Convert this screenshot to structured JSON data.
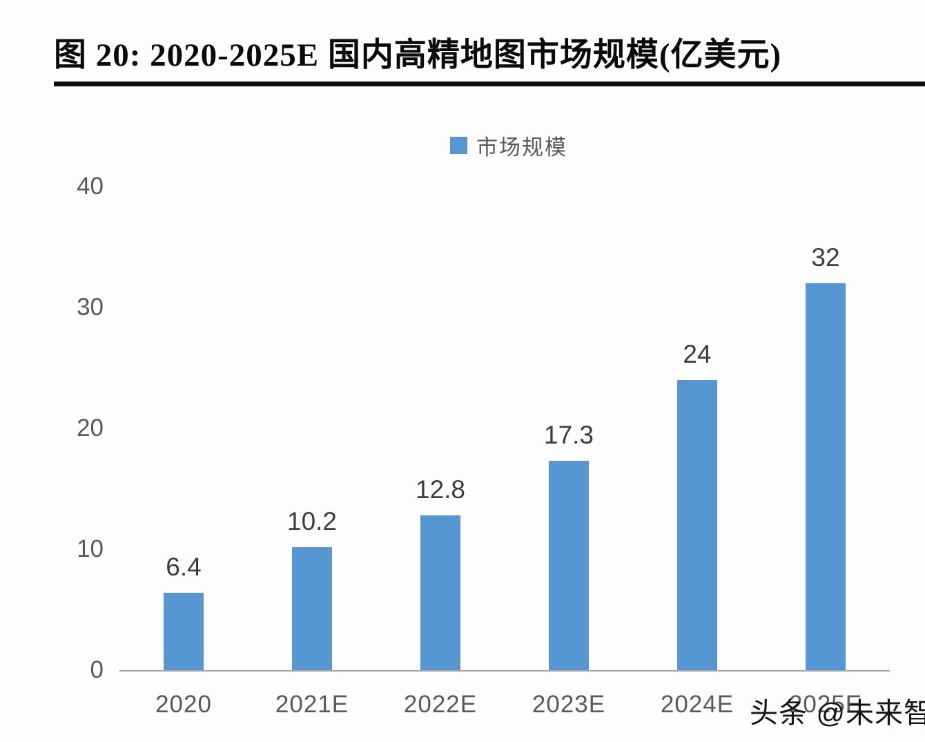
{
  "page": {
    "title": "图 20: 2020-2025E 国内高精地图市场规模(亿美元)"
  },
  "legend": {
    "label": "市场规模",
    "swatch_color": "#5596d3"
  },
  "watermark": {
    "text": "头条 @未来智库"
  },
  "chart_data": {
    "type": "bar",
    "title": "图 20: 2020-2025E 国内高精地图市场规模(亿美元)",
    "series_name": "市场规模",
    "categories": [
      "2020",
      "2021E",
      "2022E",
      "2023E",
      "2024E",
      "2025E"
    ],
    "values": [
      6.4,
      10.2,
      12.8,
      17.3,
      24,
      32
    ],
    "data_labels": [
      "6.4",
      "10.2",
      "12.8",
      "17.3",
      "24",
      "32"
    ],
    "xlabel": "",
    "ylabel": "",
    "ylim": [
      0,
      40
    ],
    "yticks": [
      0,
      10,
      20,
      30,
      40
    ],
    "bar_color": "#5596d3",
    "grid": false,
    "legend_position": "top-center"
  }
}
